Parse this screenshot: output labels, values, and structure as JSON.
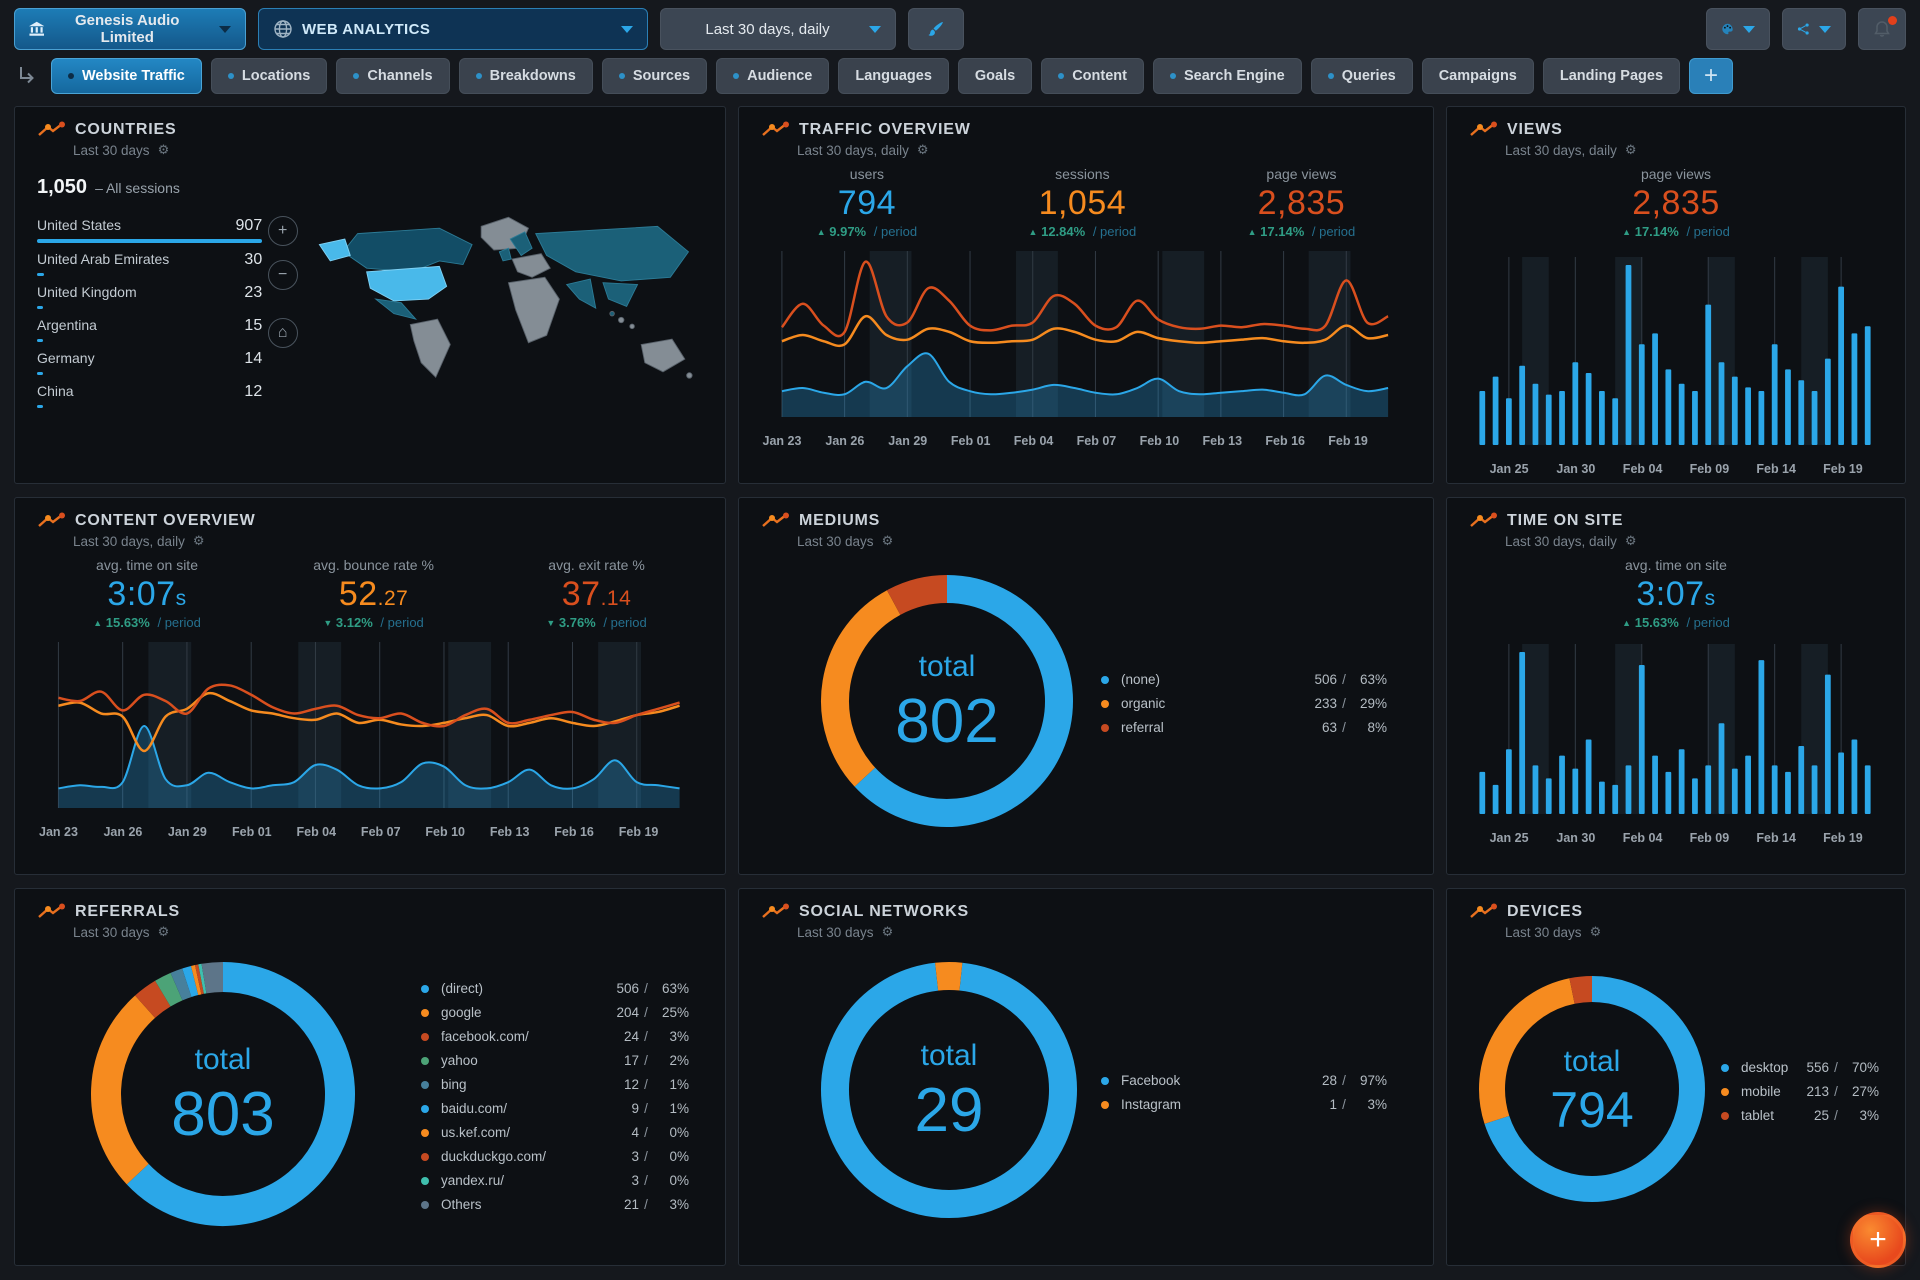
{
  "arrow_up": "▲",
  "arrow_down": "▼",
  "period_suffix": "/ period",
  "legend_separator": "/",
  "header": {
    "org_label": "Genesis Audio Limited",
    "dashboard_label": "WEB ANALYTICS",
    "date_range_label": "Last 30 days, daily"
  },
  "tabs": [
    {
      "label": "Website Traffic",
      "dot": true,
      "active": true
    },
    {
      "label": "Locations",
      "dot": true,
      "active": false
    },
    {
      "label": "Channels",
      "dot": true,
      "active": false
    },
    {
      "label": "Breakdowns",
      "dot": true,
      "active": false
    },
    {
      "label": "Sources",
      "dot": true,
      "active": false
    },
    {
      "label": "Audience",
      "dot": true,
      "active": false
    },
    {
      "label": "Languages",
      "dot": false,
      "active": false
    },
    {
      "label": "Goals",
      "dot": false,
      "active": false
    },
    {
      "label": "Content",
      "dot": true,
      "active": false
    },
    {
      "label": "Search Engine",
      "dot": true,
      "active": false
    },
    {
      "label": "Queries",
      "dot": true,
      "active": false
    },
    {
      "label": "Campaigns",
      "dot": false,
      "active": false
    },
    {
      "label": "Landing Pages",
      "dot": false,
      "active": false
    }
  ],
  "add_tab_label": "+",
  "fab_label": "+",
  "panels": {
    "countries": {
      "title": "COUNTRIES",
      "subtitle": "Last 30 days",
      "total": "1,050",
      "total_suffix": "– All sessions",
      "zoom_in": "+",
      "zoom_out": "−",
      "zoom_home": "⌂",
      "rows": [
        {
          "name": "United States",
          "value": "907",
          "num": 907
        },
        {
          "name": "United Arab Emirates",
          "value": "30",
          "num": 30
        },
        {
          "name": "United Kingdom",
          "value": "23",
          "num": 23
        },
        {
          "name": "Argentina",
          "value": "15",
          "num": 15
        },
        {
          "name": "Germany",
          "value": "14",
          "num": 14
        },
        {
          "name": "China",
          "value": "12",
          "num": 12
        }
      ]
    },
    "traffic": {
      "title": "TRAFFIC OVERVIEW",
      "subtitle": "Last 30 days, daily",
      "stats": [
        {
          "label": "users",
          "main": "794",
          "small": "",
          "delta": "9.97%",
          "dir": "up",
          "color": "#2ba7e8"
        },
        {
          "label": "sessions",
          "main": "1,054",
          "small": "",
          "delta": "12.84%",
          "dir": "up",
          "color": "#f68b1f"
        },
        {
          "label": "page views",
          "main": "2,835",
          "small": "",
          "delta": "17.14%",
          "dir": "up",
          "color": "#d94f1e"
        }
      ],
      "chart": {
        "type": "line",
        "n": 30,
        "x_labels": [
          "Jan 23",
          "Jan 26",
          "Jan 29",
          "Feb 01",
          "Feb 04",
          "Feb 07",
          "Feb 10",
          "Feb 13",
          "Feb 16",
          "Feb 19"
        ],
        "label_indices": [
          0,
          3,
          6,
          9,
          12,
          15,
          18,
          21,
          24,
          27
        ],
        "bands": [
          [
            4.2,
            6.2
          ],
          [
            11.2,
            13.2
          ],
          [
            18.2,
            20.2
          ],
          [
            25.2,
            27.2
          ]
        ],
        "series": [
          {
            "name": "users",
            "type": "area",
            "color": "#2ba7e8",
            "values": [
              14,
              16,
              13,
              12,
              20,
              16,
              30,
              38,
              20,
              14,
              12,
              13,
              15,
              18,
              16,
              13,
              12,
              16,
              22,
              14,
              12,
              13,
              14,
              15,
              13,
              12,
              24,
              18,
              14,
              16
            ]
          },
          {
            "name": "sessions",
            "type": "line",
            "color": "#f68b1f",
            "values": [
              46,
              50,
              46,
              44,
              62,
              50,
              47,
              54,
              52,
              46,
              45,
              46,
              47,
              54,
              52,
              47,
              46,
              52,
              48,
              46,
              45,
              46,
              47,
              48,
              46,
              45,
              47,
              56,
              48,
              50
            ]
          },
          {
            "name": "page views",
            "type": "line",
            "color": "#d94f1e",
            "values": [
              55,
              70,
              56,
              52,
              97,
              62,
              58,
              80,
              72,
              56,
              53,
              56,
              58,
              75,
              70,
              56,
              55,
              72,
              60,
              55,
              54,
              56,
              55,
              57,
              56,
              54,
              56,
              85,
              58,
              62
            ]
          }
        ]
      }
    },
    "views": {
      "title": "VIEWS",
      "subtitle": "Last 30 days, daily",
      "stats": [
        {
          "label": "page views",
          "main": "2,835",
          "small": "",
          "delta": "17.14%",
          "dir": "up",
          "color": "#d94f1e"
        }
      ],
      "chart": {
        "type": "bar",
        "n": 30,
        "color": "#2ba7e8",
        "x_labels": [
          "Jan 25",
          "Jan 30",
          "Feb 04",
          "Feb 09",
          "Feb 14",
          "Feb 19"
        ],
        "label_indices": [
          2,
          7,
          12,
          17,
          22,
          27
        ],
        "bands": [
          [
            3,
            5
          ],
          [
            10,
            12
          ],
          [
            17,
            19
          ],
          [
            24,
            26
          ]
        ],
        "values": [
          30,
          38,
          26,
          44,
          34,
          28,
          30,
          46,
          40,
          30,
          26,
          100,
          56,
          62,
          42,
          34,
          30,
          78,
          46,
          38,
          32,
          30,
          56,
          42,
          36,
          30,
          48,
          88,
          62,
          66
        ]
      }
    },
    "content": {
      "title": "CONTENT OVERVIEW",
      "subtitle": "Last 30 days, daily",
      "stats": [
        {
          "label": "avg. time on site",
          "main": "3:07",
          "small": "s",
          "delta": "15.63%",
          "dir": "up",
          "color": "#2ba7e8"
        },
        {
          "label": "avg. bounce rate %",
          "main": "52",
          "small": ".27",
          "delta": "3.12%",
          "dir": "down",
          "color": "#f68b1f"
        },
        {
          "label": "avg. exit rate %",
          "main": "37",
          "small": ".14",
          "delta": "3.76%",
          "dir": "down",
          "color": "#d94f1e"
        }
      ],
      "chart": {
        "type": "line",
        "n": 30,
        "x_labels": [
          "Jan 23",
          "Jan 26",
          "Jan 29",
          "Feb 01",
          "Feb 04",
          "Feb 07",
          "Feb 10",
          "Feb 13",
          "Feb 16",
          "Feb 19"
        ],
        "label_indices": [
          0,
          3,
          6,
          9,
          12,
          15,
          18,
          21,
          24,
          27
        ],
        "bands": [
          [
            4.2,
            6.2
          ],
          [
            11.2,
            13.2
          ],
          [
            18.2,
            20.2
          ],
          [
            25.2,
            27.2
          ]
        ],
        "series": [
          {
            "name": "time on site",
            "type": "area",
            "color": "#2ba7e8",
            "values": [
              10,
              12,
              11,
              14,
              50,
              16,
              12,
              20,
              14,
              10,
              12,
              14,
              25,
              22,
              12,
              10,
              14,
              26,
              24,
              12,
              10,
              14,
              22,
              12,
              10,
              16,
              28,
              14,
              12,
              10
            ]
          },
          {
            "name": "bounce rate",
            "type": "line",
            "color": "#f68b1f",
            "values": [
              63,
              65,
              58,
              56,
              34,
              56,
              61,
              71,
              66,
              60,
              58,
              55,
              54,
              58,
              52,
              54,
              51,
              50,
              52,
              55,
              57,
              50,
              52,
              55,
              52,
              50,
              53,
              57,
              59,
              63
            ]
          },
          {
            "name": "exit rate",
            "type": "line",
            "color": "#d94f1e",
            "values": [
              68,
              66,
              72,
              60,
              70,
              66,
              58,
              74,
              76,
              70,
              62,
              58,
              61,
              63,
              57,
              55,
              58,
              52,
              50,
              57,
              61,
              52,
              54,
              57,
              59,
              54,
              52,
              57,
              61,
              65
            ]
          }
        ]
      }
    },
    "mediums": {
      "title": "MEDIUMS",
      "subtitle": "Last 30 days",
      "total_label": "total",
      "total": "802",
      "rotate": 0,
      "legend": [
        {
          "label": "(none)",
          "value": "506",
          "pct": "63%",
          "share": 63.1,
          "color": "#2ba7e8"
        },
        {
          "label": "organic",
          "value": "233",
          "pct": "29%",
          "share": 29.0,
          "color": "#f68b1f"
        },
        {
          "label": "referral",
          "value": "63",
          "pct": "8%",
          "share": 7.9,
          "color": "#c64a21"
        }
      ]
    },
    "timeonsite": {
      "title": "TIME ON SITE",
      "subtitle": "Last 30 days, daily",
      "stats": [
        {
          "label": "avg. time on site",
          "main": "3:07",
          "small": "s",
          "delta": "15.63%",
          "dir": "up",
          "color": "#2ba7e8"
        }
      ],
      "chart": {
        "type": "bar",
        "n": 30,
        "color": "#2ba7e8",
        "x_labels": [
          "Jan 25",
          "Jan 30",
          "Feb 04",
          "Feb 09",
          "Feb 14",
          "Feb 19"
        ],
        "label_indices": [
          2,
          7,
          12,
          17,
          22,
          27
        ],
        "bands": [
          [
            3,
            5
          ],
          [
            10,
            12
          ],
          [
            17,
            19
          ],
          [
            24,
            26
          ]
        ],
        "values": [
          26,
          18,
          40,
          100,
          30,
          22,
          36,
          28,
          46,
          20,
          18,
          30,
          92,
          36,
          26,
          40,
          22,
          30,
          56,
          28,
          36,
          95,
          30,
          26,
          42,
          30,
          86,
          38,
          46,
          30
        ]
      }
    },
    "referrals": {
      "title": "REFERRALS",
      "subtitle": "Last 30 days",
      "total_label": "total",
      "total": "803",
      "rotate": 0,
      "legend": [
        {
          "label": "(direct)",
          "value": "506",
          "pct": "63%",
          "share": 63.0,
          "color": "#2ba7e8"
        },
        {
          "label": "google",
          "value": "204",
          "pct": "25%",
          "share": 25.4,
          "color": "#f68b1f"
        },
        {
          "label": "facebook.com/",
          "value": "24",
          "pct": "3%",
          "share": 3.0,
          "color": "#c64a21"
        },
        {
          "label": "yahoo",
          "value": "17",
          "pct": "2%",
          "share": 2.1,
          "color": "#4ca377"
        },
        {
          "label": "bing",
          "value": "12",
          "pct": "1%",
          "share": 1.5,
          "color": "#47809c"
        },
        {
          "label": "baidu.com/",
          "value": "9",
          "pct": "1%",
          "share": 1.1,
          "color": "#2ba7e8"
        },
        {
          "label": "us.kef.com/",
          "value": "4",
          "pct": "0%",
          "share": 0.5,
          "color": "#f68b1f"
        },
        {
          "label": "duckduckgo.com/",
          "value": "3",
          "pct": "0%",
          "share": 0.4,
          "color": "#c64a21"
        },
        {
          "label": "yandex.ru/",
          "value": "3",
          "pct": "0%",
          "share": 0.4,
          "color": "#3fbfae"
        },
        {
          "label": "Others",
          "value": "21",
          "pct": "3%",
          "share": 2.6,
          "color": "#5d7589"
        }
      ]
    },
    "social": {
      "title": "SOCIAL NETWORKS",
      "subtitle": "Last 30 days",
      "total_label": "total",
      "total": "29",
      "rotate": 6,
      "legend": [
        {
          "label": "Facebook",
          "value": "28",
          "pct": "97%",
          "share": 96.6,
          "color": "#2ba7e8"
        },
        {
          "label": "Instagram",
          "value": "1",
          "pct": "3%",
          "share": 3.4,
          "color": "#f68b1f"
        }
      ]
    },
    "devices": {
      "title": "DEVICES",
      "subtitle": "Last 30 days",
      "total_label": "total",
      "total": "794",
      "rotate": 0,
      "legend": [
        {
          "label": "desktop",
          "value": "556",
          "pct": "70%",
          "share": 70.0,
          "color": "#2ba7e8"
        },
        {
          "label": "mobile",
          "value": "213",
          "pct": "27%",
          "share": 26.8,
          "color": "#f68b1f"
        },
        {
          "label": "tablet",
          "value": "25",
          "pct": "3%",
          "share": 3.2,
          "color": "#c64a21"
        }
      ]
    }
  }
}
